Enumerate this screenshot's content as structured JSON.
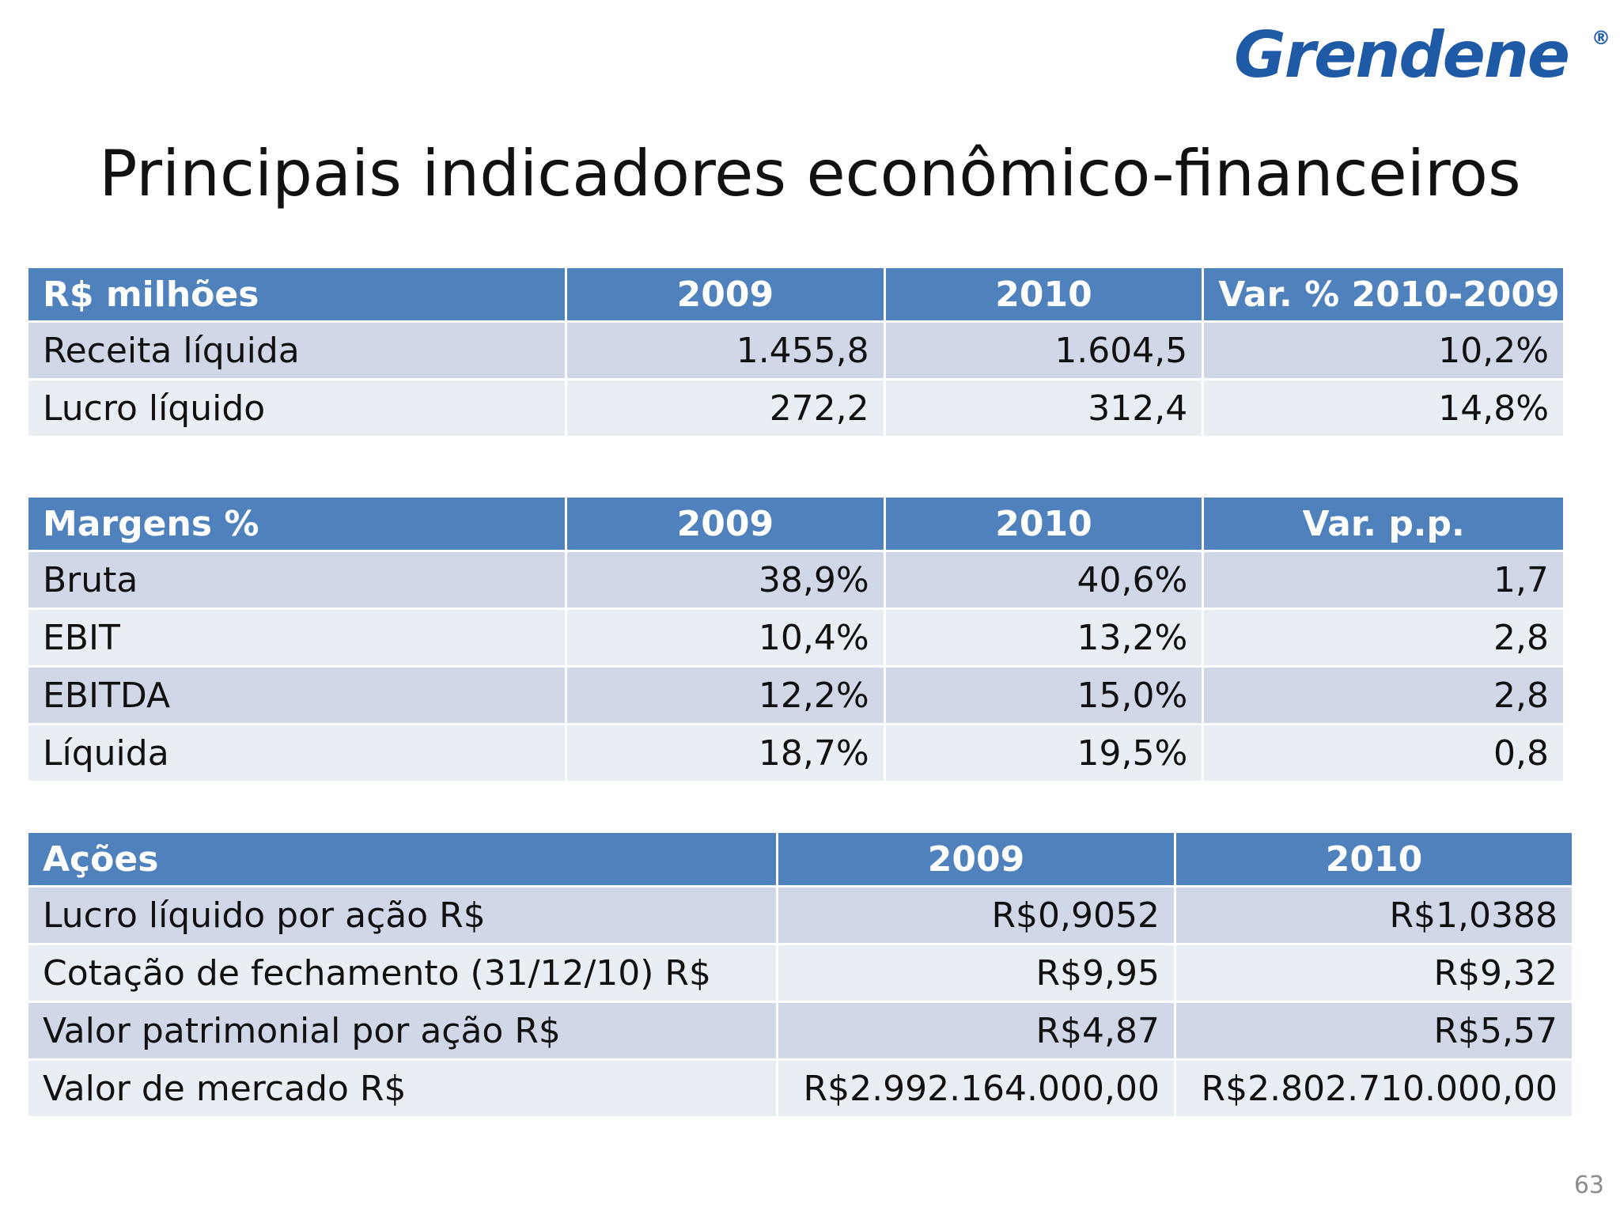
{
  "logo": {
    "text": "Grendene",
    "registered": "®"
  },
  "title": "Principais indicadores econômico-financeiros",
  "table1": {
    "headers": [
      "R$ milhões",
      "2009",
      "2010",
      "Var. % 2010-2009"
    ],
    "rows": [
      [
        "Receita líquida",
        "1.455,8",
        "1.604,5",
        "10,2%"
      ],
      [
        "Lucro líquido",
        "272,2",
        "312,4",
        "14,8%"
      ]
    ]
  },
  "table2": {
    "headers": [
      "Margens %",
      "2009",
      "2010",
      "Var. p.p."
    ],
    "rows": [
      [
        "Bruta",
        "38,9%",
        "40,6%",
        "1,7"
      ],
      [
        "EBIT",
        "10,4%",
        "13,2%",
        "2,8"
      ],
      [
        "EBITDA",
        "12,2%",
        "15,0%",
        "2,8"
      ],
      [
        "Líquida",
        "18,7%",
        "19,5%",
        "0,8"
      ]
    ]
  },
  "table3": {
    "headers": [
      "Ações",
      "2009",
      "2010"
    ],
    "rows": [
      [
        "Lucro líquido por ação R$",
        "R$0,9052",
        "R$1,0388"
      ],
      [
        "Cotação de fechamento (31/12/10) R$",
        "R$9,95",
        "R$9,32"
      ],
      [
        "Valor patrimonial por ação R$",
        "R$4,87",
        "R$5,57"
      ],
      [
        "Valor de mercado R$",
        "R$2.992.164.000,00",
        "R$2.802.710.000,00"
      ]
    ]
  },
  "page_number": "63"
}
